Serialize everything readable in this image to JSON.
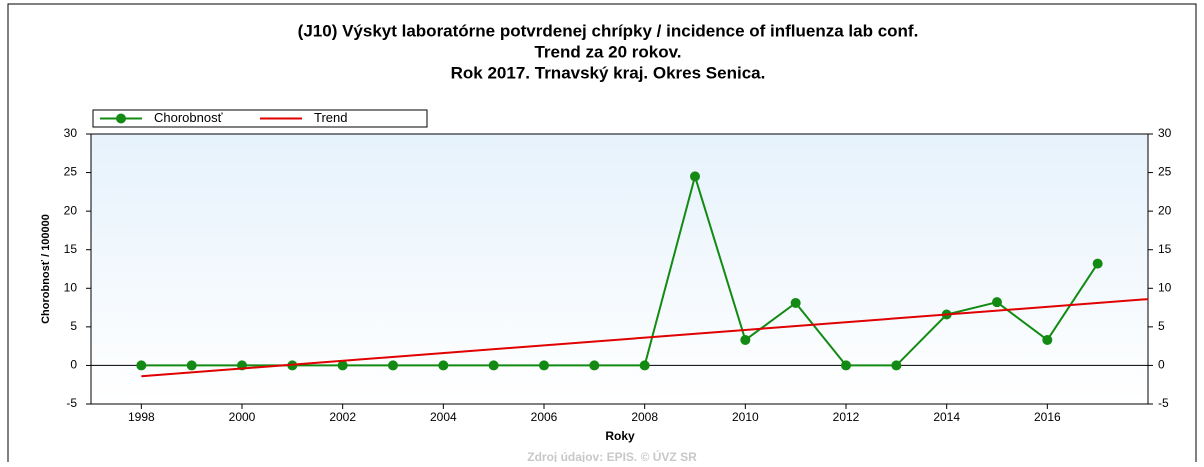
{
  "chart_data": {
    "type": "line",
    "title": [
      "(J10) Výskyt laboratórne potvrdenej chrípky / incidence of influenza lab conf.",
      "Trend za 20 rokov.",
      "Rok 2017. Trnavský kraj. Okres Senica."
    ],
    "xlabel": "Roky",
    "ylabel": "Chorobnosť / 100000",
    "source": "Zdroj údajov: EPIS. © ÚVZ SR",
    "series": [
      {
        "name": "Chorobnosť",
        "color": "#138a13",
        "markers": true,
        "x": [
          1998,
          1999,
          2000,
          2001,
          2002,
          2003,
          2004,
          2005,
          2006,
          2007,
          2008,
          2009,
          2010,
          2011,
          2012,
          2013,
          2014,
          2015,
          2016,
          2017
        ],
        "values": [
          0,
          0,
          0,
          0,
          0,
          0,
          0,
          0,
          0,
          0,
          0,
          24.5,
          3.3,
          8.1,
          0,
          0,
          6.6,
          8.2,
          3.3,
          13.2
        ]
      },
      {
        "name": "Trend",
        "color": "#e00000",
        "markers": false,
        "x": [
          1998,
          2018
        ],
        "values": [
          -1.4,
          8.6
        ]
      }
    ],
    "xlim": [
      1997,
      2018
    ],
    "xticks": [
      1998,
      2000,
      2002,
      2004,
      2006,
      2008,
      2010,
      2012,
      2014,
      2016
    ],
    "ylim": [
      -5,
      30
    ],
    "yticks": [
      -5,
      0,
      5,
      10,
      15,
      20,
      25,
      30
    ]
  }
}
